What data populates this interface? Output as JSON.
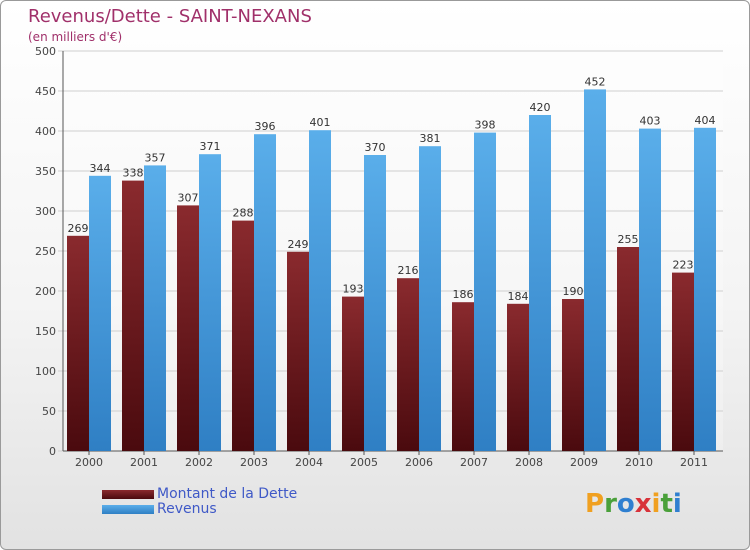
{
  "header": {
    "title": "Revenus/Dette - SAINT-NEXANS",
    "subtitle": "(en milliers d'€)"
  },
  "colors": {
    "dette": "#7a1f24",
    "revenus": "#4a9fe0",
    "title": "#a0306a",
    "legend_text": "#3f59c7"
  },
  "chart_data": {
    "type": "bar",
    "categories": [
      "2000",
      "2001",
      "2002",
      "2003",
      "2004",
      "2005",
      "2006",
      "2007",
      "2008",
      "2009",
      "2010",
      "2011"
    ],
    "series": [
      {
        "name": "Montant de la Dette",
        "values": [
          269,
          338,
          307,
          288,
          249,
          193,
          216,
          186,
          184,
          190,
          255,
          223
        ]
      },
      {
        "name": "Revenus",
        "values": [
          344,
          357,
          371,
          396,
          401,
          370,
          381,
          398,
          420,
          452,
          403,
          404
        ]
      }
    ],
    "yticks": [
      0,
      50,
      100,
      150,
      200,
      250,
      300,
      350,
      400,
      450,
      500
    ],
    "ylim": [
      0,
      500
    ],
    "grid": true,
    "legend_position": "bottom-left"
  },
  "legend": {
    "items": [
      {
        "label": "Montant de la Dette"
      },
      {
        "label": "Revenus"
      }
    ]
  },
  "logo": {
    "letters": [
      "P",
      "r",
      "o",
      "x",
      "i",
      "t",
      "i"
    ],
    "letter_colors": [
      "#f0a020",
      "#4aa03a",
      "#2f7fd0",
      "#d8323a",
      "#f0a020",
      "#4aa03a",
      "#2f7fd0"
    ]
  }
}
